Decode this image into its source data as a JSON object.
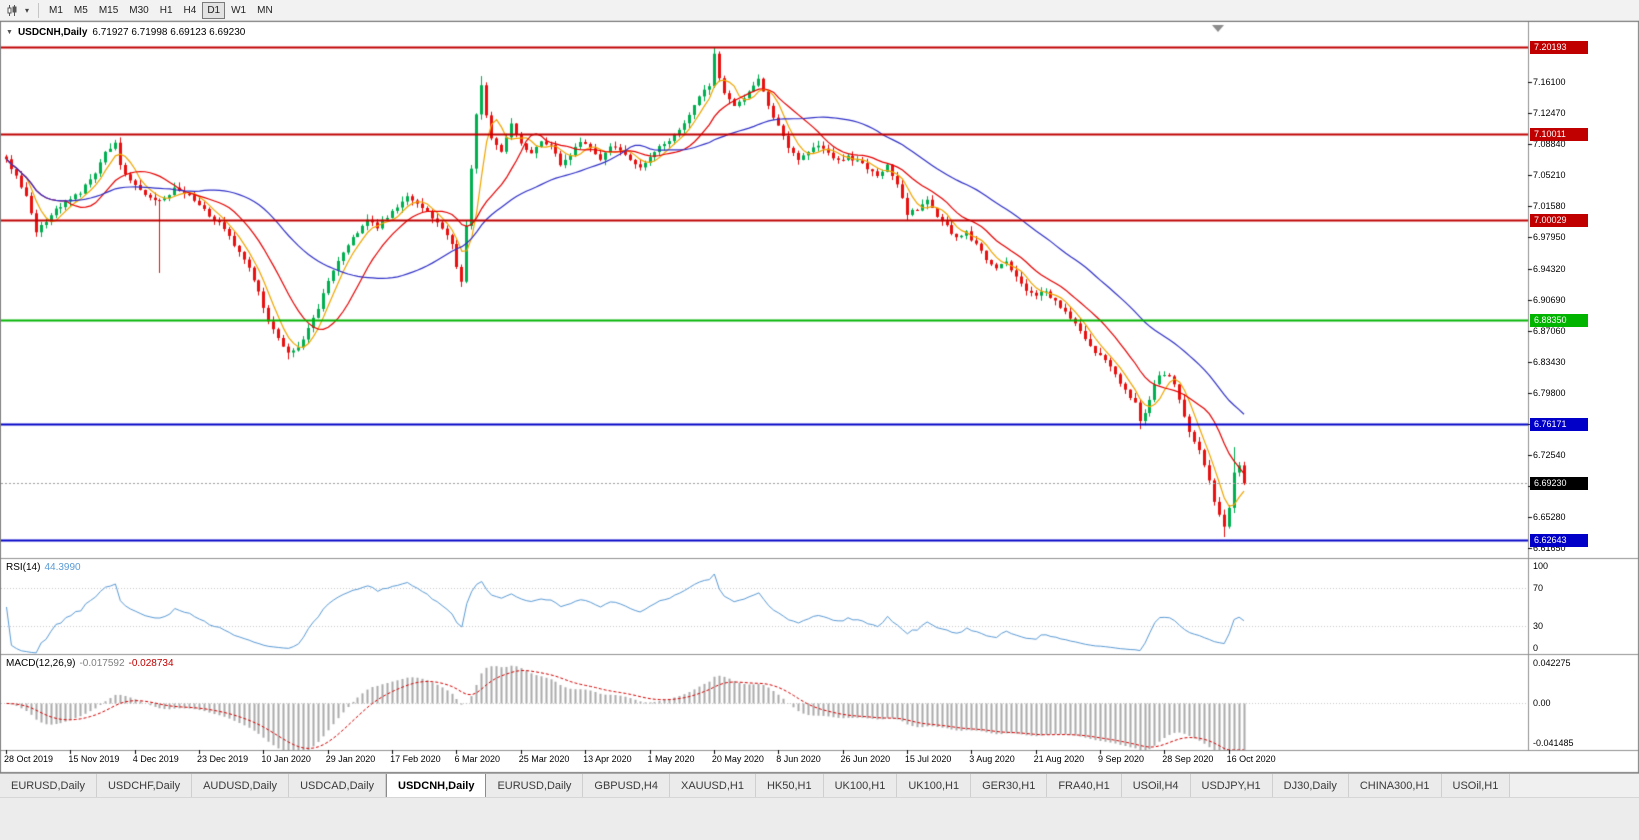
{
  "toolbar": {
    "chart_type_icon": "candlestick-chart",
    "dropdown_icon": "caret-down",
    "timeframes": [
      "M1",
      "M5",
      "M15",
      "M30",
      "H1",
      "H4",
      "D1",
      "W1",
      "MN"
    ],
    "active_timeframe": "D1"
  },
  "chart": {
    "symbol_label": "USDCNH,Daily",
    "ohlc_text": "6.71927 6.71998 6.69123 6.69230",
    "open": "6.71927",
    "high": "6.71998",
    "low": "6.69123",
    "close": "6.69230",
    "price_axis_ticks": [
      "7.16100",
      "7.12470",
      "7.08840",
      "7.05210",
      "7.01580",
      "6.97950",
      "6.94320",
      "6.90690",
      "6.87060",
      "6.83430",
      "6.79800",
      "6.76170",
      "6.72540",
      "6.68910",
      "6.65280",
      "6.61650"
    ],
    "hlines": [
      {
        "price": 7.20193,
        "color": "#C00000",
        "width": 2
      },
      {
        "price": 7.10011,
        "color": "#C00000",
        "width": 2
      },
      {
        "price": 7.00029,
        "color": "#C00000",
        "width": 2
      },
      {
        "price": 6.8835,
        "color": "#00B400",
        "width": 2
      },
      {
        "price": 6.76171,
        "color": "#0000C8",
        "width": 2
      },
      {
        "price": 6.62643,
        "color": "#0000C8",
        "width": 2
      }
    ],
    "badges": [
      {
        "text": "7.20193",
        "price": 7.20193,
        "bg": "#C00000"
      },
      {
        "text": "7.10011",
        "price": 7.10011,
        "bg": "#C00000"
      },
      {
        "text": "7.00029",
        "price": 7.00029,
        "bg": "#C00000"
      },
      {
        "text": "6.88350",
        "price": 6.8835,
        "bg": "#00B400"
      },
      {
        "text": "6.76171",
        "price": 6.76171,
        "bg": "#0000C8"
      },
      {
        "text": "6.62643",
        "price": 6.62643,
        "bg": "#0000C8"
      },
      {
        "text": "6.69230",
        "price": 6.6923,
        "bg": "#000000"
      }
    ],
    "current_price": {
      "value": 6.6923,
      "line_color": "#9C9C9C"
    },
    "indicators": {
      "rsi": {
        "name": "RSI(14)",
        "value": "44.3990",
        "period": 14,
        "color": "#5B9BD5",
        "levels": [
          "100",
          "70",
          "30",
          "0"
        ]
      },
      "macd": {
        "name": "MACD(12,26,9)",
        "value_main": "-0.017592",
        "value_signal": "-0.028734",
        "axis_max": "0.042275",
        "axis_zero": "0.00",
        "axis_min": "-0.041485",
        "histogram_color": "#ABABAB",
        "signal_color": "#D40000"
      }
    }
  },
  "chart_data": {
    "type": "candlestick",
    "symbol": "USDCNH",
    "timeframe": "Daily",
    "num_candles": 251,
    "candle_spacing_px": 4.95,
    "label_interval_days": 13,
    "price_top": 7.23,
    "price_bottom": 6.605,
    "up_color": "#00B050",
    "down_color": "#E81010",
    "last_close": 6.6923,
    "date_labels": [
      "28 Oct 2019",
      "15 Nov 2019",
      "4 Dec 2019",
      "23 Dec 2019",
      "10 Jan 2020",
      "29 Jan 2020",
      "17 Feb 2020",
      "6 Mar 2020",
      "25 Mar 2020",
      "13 Apr 2020",
      "1 May 2020",
      "20 May 2020",
      "8 Jun 2020",
      "26 Jun 2020",
      "15 Jul 2020",
      "3 Aug 2020",
      "21 Aug 2020",
      "9 Sep 2020",
      "28 Sep 2020",
      "16 Oct 2020"
    ],
    "close_anchors": [
      [
        0,
        7.07
      ],
      [
        2,
        7.052
      ],
      [
        4,
        7.028
      ],
      [
        6,
        6.988
      ],
      [
        8,
        6.998
      ],
      [
        10,
        7.012
      ],
      [
        12,
        7.022
      ],
      [
        15,
        7.032
      ],
      [
        18,
        7.055
      ],
      [
        20,
        7.078
      ],
      [
        22,
        7.088
      ],
      [
        23,
        7.064
      ],
      [
        25,
        7.044
      ],
      [
        28,
        7.03
      ],
      [
        31,
        7.022
      ],
      [
        34,
        7.036
      ],
      [
        37,
        7.028
      ],
      [
        40,
        7.012
      ],
      [
        43,
        6.995
      ],
      [
        46,
        6.972
      ],
      [
        49,
        6.945
      ],
      [
        51,
        6.915
      ],
      [
        53,
        6.882
      ],
      [
        55,
        6.862
      ],
      [
        57,
        6.845
      ],
      [
        59,
        6.852
      ],
      [
        61,
        6.872
      ],
      [
        63,
        6.898
      ],
      [
        65,
        6.928
      ],
      [
        67,
        6.952
      ],
      [
        69,
        6.972
      ],
      [
        71,
        6.985
      ],
      [
        73,
        6.998
      ],
      [
        75,
        6.992
      ],
      [
        77,
        7.004
      ],
      [
        79,
        7.015
      ],
      [
        81,
        7.026
      ],
      [
        83,
        7.02
      ],
      [
        85,
        7.008
      ],
      [
        87,
        6.995
      ],
      [
        89,
        6.982
      ],
      [
        90,
        6.972
      ],
      [
        91,
        6.945
      ],
      [
        92,
        6.93
      ],
      [
        94,
        7.06
      ],
      [
        95,
        7.125
      ],
      [
        96,
        7.158
      ],
      [
        97,
        7.12
      ],
      [
        98,
        7.095
      ],
      [
        100,
        7.078
      ],
      [
        102,
        7.112
      ],
      [
        104,
        7.09
      ],
      [
        106,
        7.078
      ],
      [
        108,
        7.094
      ],
      [
        110,
        7.086
      ],
      [
        112,
        7.064
      ],
      [
        114,
        7.078
      ],
      [
        116,
        7.092
      ],
      [
        118,
        7.082
      ],
      [
        120,
        7.072
      ],
      [
        122,
        7.088
      ],
      [
        124,
        7.08
      ],
      [
        126,
        7.07
      ],
      [
        128,
        7.062
      ],
      [
        130,
        7.074
      ],
      [
        132,
        7.085
      ],
      [
        134,
        7.092
      ],
      [
        136,
        7.106
      ],
      [
        138,
        7.122
      ],
      [
        140,
        7.142
      ],
      [
        142,
        7.158
      ],
      [
        143,
        7.192
      ],
      [
        144,
        7.168
      ],
      [
        145,
        7.15
      ],
      [
        147,
        7.134
      ],
      [
        149,
        7.144
      ],
      [
        151,
        7.158
      ],
      [
        152,
        7.166
      ],
      [
        154,
        7.132
      ],
      [
        156,
        7.108
      ],
      [
        158,
        7.086
      ],
      [
        160,
        7.072
      ],
      [
        162,
        7.08
      ],
      [
        164,
        7.088
      ],
      [
        166,
        7.076
      ],
      [
        168,
        7.068
      ],
      [
        170,
        7.074
      ],
      [
        172,
        7.068
      ],
      [
        174,
        7.06
      ],
      [
        176,
        7.052
      ],
      [
        178,
        7.064
      ],
      [
        180,
        7.042
      ],
      [
        182,
        7.008
      ],
      [
        184,
        7.012
      ],
      [
        186,
        7.022
      ],
      [
        188,
        7.005
      ],
      [
        190,
        6.992
      ],
      [
        192,
        6.978
      ],
      [
        194,
        6.985
      ],
      [
        196,
        6.97
      ],
      [
        198,
        6.955
      ],
      [
        200,
        6.942
      ],
      [
        202,
        6.952
      ],
      [
        204,
        6.932
      ],
      [
        206,
        6.918
      ],
      [
        208,
        6.91
      ],
      [
        210,
        6.918
      ],
      [
        212,
        6.904
      ],
      [
        214,
        6.893
      ],
      [
        216,
        6.88
      ],
      [
        218,
        6.86
      ],
      [
        220,
        6.846
      ],
      [
        222,
        6.835
      ],
      [
        224,
        6.818
      ],
      [
        226,
        6.802
      ],
      [
        228,
        6.785
      ],
      [
        229,
        6.763
      ],
      [
        230,
        6.772
      ],
      [
        231,
        6.792
      ],
      [
        233,
        6.82
      ],
      [
        235,
        6.815
      ],
      [
        236,
        6.806
      ],
      [
        237,
        6.788
      ],
      [
        238,
        6.77
      ],
      [
        239,
        6.754
      ],
      [
        240,
        6.741
      ],
      [
        241,
        6.73
      ],
      [
        242,
        6.712
      ],
      [
        243,
        6.694
      ],
      [
        244,
        6.672
      ],
      [
        245,
        6.654
      ],
      [
        246,
        6.641
      ],
      [
        247,
        6.665
      ],
      [
        248,
        6.706
      ],
      [
        249,
        6.715
      ],
      [
        250,
        6.6923
      ]
    ],
    "wicks": {
      "22": {
        "high": 7.0935
      },
      "31": {
        "low": 6.938
      },
      "57": {
        "low": 6.837
      },
      "96": {
        "high": 7.168
      },
      "143": {
        "high": 7.2019
      },
      "229": {
        "low": 6.7555
      },
      "246": {
        "low": 6.6295
      },
      "248": {
        "high": 6.7345
      }
    },
    "moving_averages": [
      {
        "period": 5,
        "type": "sma",
        "color": "#F0A500"
      },
      {
        "period": 13,
        "type": "sma",
        "color": "#E60000"
      },
      {
        "period": 34,
        "type": "sma",
        "color": "#3030C8"
      }
    ],
    "macd_axis_max": 0.042275,
    "macd_axis_min": -0.041485
  },
  "tabs": [
    {
      "label": "EURUSD,Daily",
      "active": false
    },
    {
      "label": "USDCHF,Daily",
      "active": false
    },
    {
      "label": "AUDUSD,Daily",
      "active": false
    },
    {
      "label": "USDCAD,Daily",
      "active": false
    },
    {
      "label": "USDCNH,Daily",
      "active": true
    },
    {
      "label": "EURUSD,Daily",
      "active": false
    },
    {
      "label": "GBPUSD,H4",
      "active": false
    },
    {
      "label": "XAUUSD,H1",
      "active": false
    },
    {
      "label": "HK50,H1",
      "active": false
    },
    {
      "label": "UK100,H1",
      "active": false
    },
    {
      "label": "UK100,H1",
      "active": false
    },
    {
      "label": "GER30,H1",
      "active": false
    },
    {
      "label": "FRA40,H1",
      "active": false
    },
    {
      "label": "USOil,H4",
      "active": false
    },
    {
      "label": "USDJPY,H1",
      "active": false
    },
    {
      "label": "DJ30,Daily",
      "active": false
    },
    {
      "label": "CHINA300,H1",
      "active": false
    },
    {
      "label": "USOil,H1",
      "active": false
    }
  ]
}
